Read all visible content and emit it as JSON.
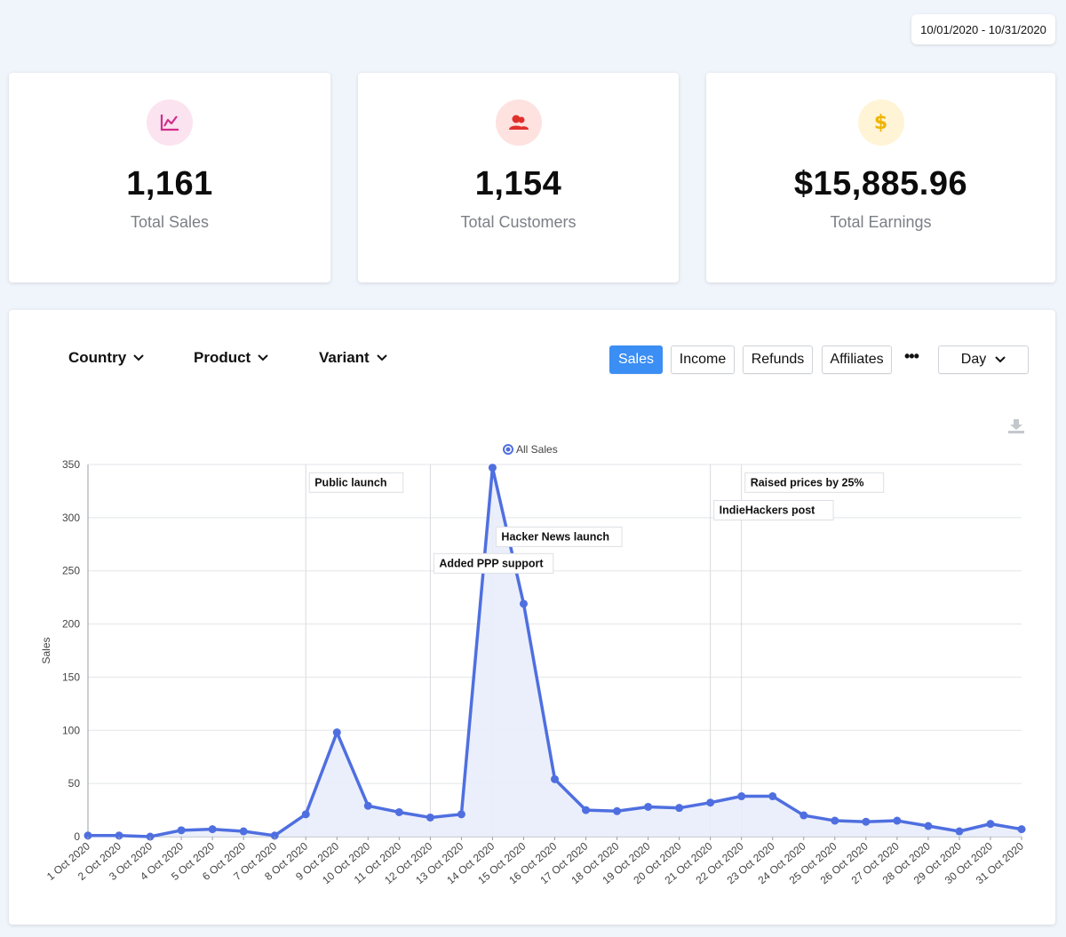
{
  "date_range": "10/01/2020 - 10/31/2020",
  "stats": {
    "sales": {
      "value": "1,161",
      "label": "Total Sales",
      "icon": "line-chart-icon",
      "icon_bg": "#fbe3ef",
      "icon_color": "#d02d8a"
    },
    "customers": {
      "value": "1,154",
      "label": "Total Customers",
      "icon": "users-icon",
      "icon_bg": "#fde2e0",
      "icon_color": "#e0302b"
    },
    "earnings": {
      "value": "$15,885.96",
      "label": "Total Earnings",
      "icon": "dollar-icon",
      "icon_bg": "#fff4d6",
      "icon_color": "#f0b400"
    }
  },
  "filters": {
    "country": "Country",
    "product": "Product",
    "variant": "Variant"
  },
  "tabs": {
    "sales": "Sales",
    "income": "Income",
    "refunds": "Refunds",
    "affiliates": "Affiliates",
    "more": "•••"
  },
  "granularity": "Day",
  "colors": {
    "accent": "#3b8ef3",
    "series": "#4f6fe0",
    "area": "#e9edfb"
  },
  "chart_data": {
    "type": "line",
    "ylabel": "Sales",
    "xlabel": "",
    "ylim": [
      0,
      350
    ],
    "yticks": [
      0,
      50,
      100,
      150,
      200,
      250,
      300,
      350
    ],
    "grid": true,
    "legend": "top-center",
    "series": [
      {
        "name": "All Sales",
        "values": [
          1,
          1,
          0,
          6,
          7,
          5,
          1,
          21,
          98,
          29,
          23,
          18,
          21,
          347,
          219,
          54,
          25,
          24,
          28,
          27,
          32,
          38,
          38,
          20,
          15,
          14,
          15,
          10,
          5,
          12,
          7
        ]
      }
    ],
    "categories": [
      "1 Oct 2020",
      "2 Oct 2020",
      "3 Oct 2020",
      "4 Oct 2020",
      "5 Oct 2020",
      "6 Oct 2020",
      "7 Oct 2020",
      "8 Oct 2020",
      "9 Oct 2020",
      "10 Oct 2020",
      "11 Oct 2020",
      "12 Oct 2020",
      "13 Oct 2020",
      "14 Oct 2020",
      "15 Oct 2020",
      "16 Oct 2020",
      "17 Oct 2020",
      "18 Oct 2020",
      "19 Oct 2020",
      "20 Oct 2020",
      "21 Oct 2020",
      "22 Oct 2020",
      "23 Oct 2020",
      "24 Oct 2020",
      "25 Oct 2020",
      "26 Oct 2020",
      "27 Oct 2020",
      "28 Oct 2020",
      "29 Oct 2020",
      "30 Oct 2020",
      "31 Oct 2020"
    ],
    "annotations": [
      {
        "text": "Public launch",
        "at_index": 7,
        "label_value": 333
      },
      {
        "text": "Added PPP support",
        "at_index": 11,
        "label_value": 257
      },
      {
        "text": "Hacker News launch",
        "at_index": 13,
        "label_value": 282
      },
      {
        "text": "IndieHackers post",
        "at_index": 20,
        "label_value": 307
      },
      {
        "text": "Raised prices by 25%",
        "at_index": 21,
        "label_value": 333
      }
    ]
  }
}
